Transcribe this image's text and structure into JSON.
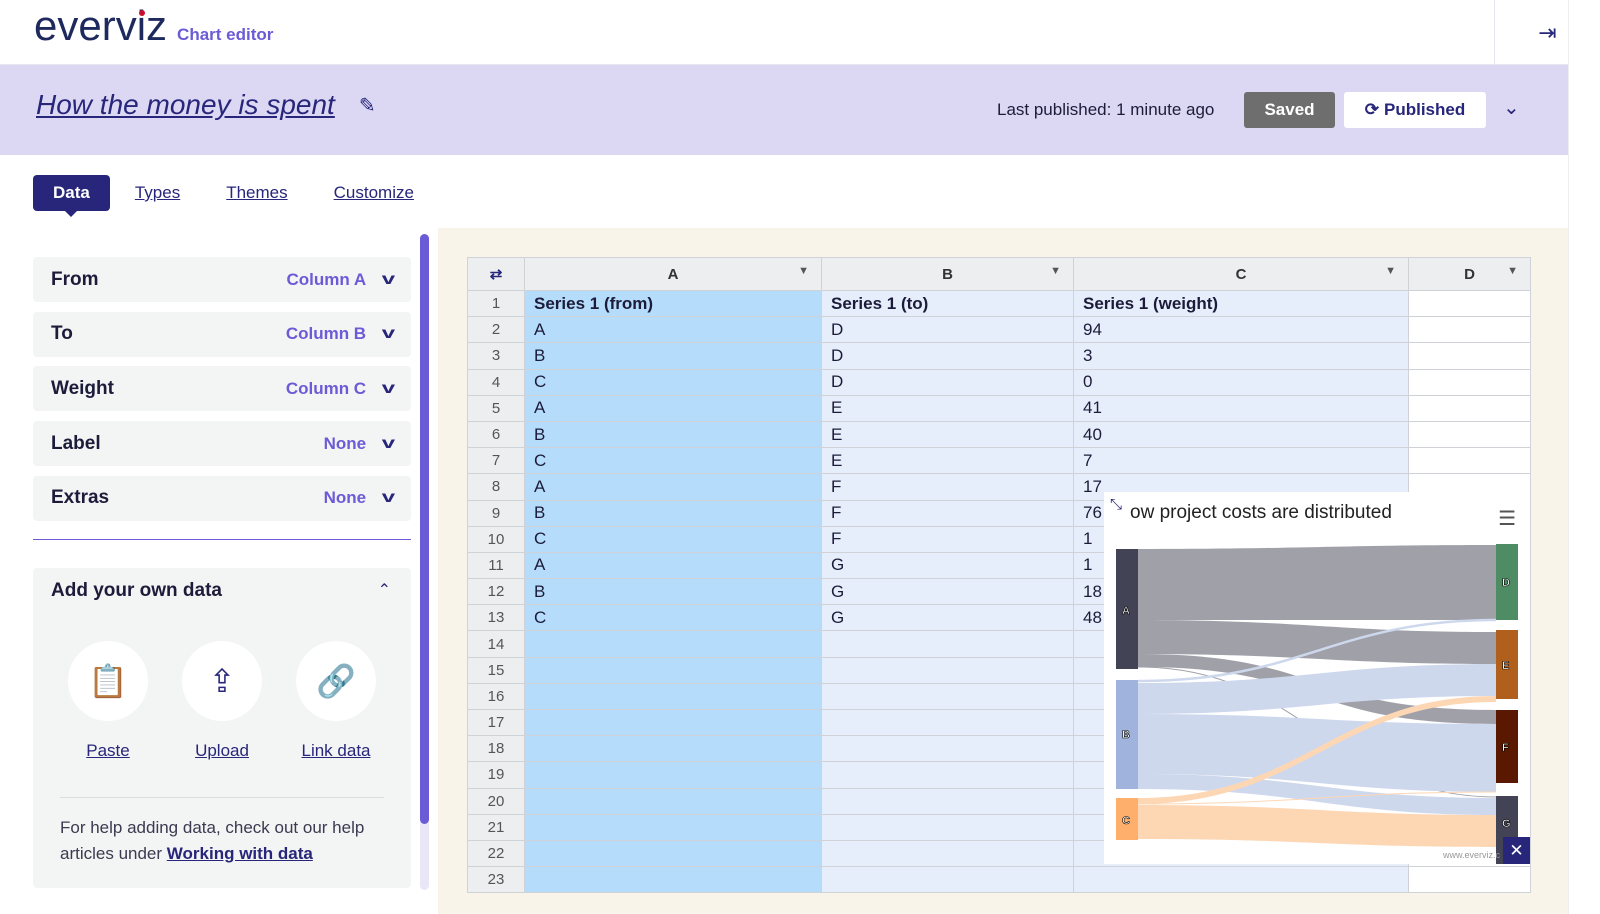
{
  "app": {
    "logo": "everviz",
    "subtitle": "Chart editor",
    "logout_icon": "sign-out-icon"
  },
  "header": {
    "title": "How the money is spent",
    "last_published": "Last published: 1 minute ago",
    "saved_label": "Saved",
    "published_label": "Published"
  },
  "tabs": [
    {
      "label": "Data",
      "active": true
    },
    {
      "label": "Types"
    },
    {
      "label": "Themes"
    },
    {
      "label": "Customize"
    }
  ],
  "mapping": [
    {
      "label": "From",
      "value": "Column A"
    },
    {
      "label": "To",
      "value": "Column B"
    },
    {
      "label": "Weight",
      "value": "Column C"
    },
    {
      "label": "Label",
      "value": "None"
    },
    {
      "label": "Extras",
      "value": "None"
    }
  ],
  "add_data": {
    "title": "Add your own data",
    "paste": "Paste",
    "upload": "Upload",
    "link": "Link data",
    "help": "For help adding data, check out our help articles under ",
    "help_link": "Working with data"
  },
  "grid": {
    "columns": [
      "A",
      "B",
      "C",
      "D"
    ],
    "rows": [
      [
        "Series 1 (from)",
        "Series 1 (to)",
        "Series 1 (weight)",
        ""
      ],
      [
        "A",
        "D",
        "94",
        ""
      ],
      [
        "B",
        "D",
        "3",
        ""
      ],
      [
        "C",
        "D",
        "0",
        ""
      ],
      [
        "A",
        "E",
        "41",
        ""
      ],
      [
        "B",
        "E",
        "40",
        ""
      ],
      [
        "C",
        "E",
        "7",
        ""
      ],
      [
        "A",
        "F",
        "17",
        ""
      ],
      [
        "B",
        "F",
        "76",
        ""
      ],
      [
        "C",
        "F",
        "1",
        ""
      ],
      [
        "A",
        "G",
        "1",
        ""
      ],
      [
        "B",
        "G",
        "18",
        ""
      ],
      [
        "C",
        "G",
        "48",
        ""
      ],
      [
        "",
        "",
        "",
        ""
      ],
      [
        "",
        "",
        "",
        ""
      ],
      [
        "",
        "",
        "",
        ""
      ],
      [
        "",
        "",
        "",
        ""
      ],
      [
        "",
        "",
        "",
        ""
      ],
      [
        "",
        "",
        "",
        ""
      ],
      [
        "",
        "",
        "",
        ""
      ],
      [
        "",
        "",
        "",
        ""
      ],
      [
        "",
        "",
        "",
        ""
      ],
      [
        "",
        "",
        "",
        ""
      ]
    ]
  },
  "preview": {
    "title": "ow project costs are distributed",
    "watermark": "www.everviz.c",
    "nodes": [
      "A",
      "B",
      "C",
      "D",
      "E",
      "F",
      "G"
    ],
    "colors": {
      "A": "#434356",
      "B": "#9fb3dc",
      "C": "#fdaf6b",
      "D": "#4e8c63",
      "E": "#b0601c",
      "F": "#5a1800",
      "G": "#434356"
    }
  }
}
